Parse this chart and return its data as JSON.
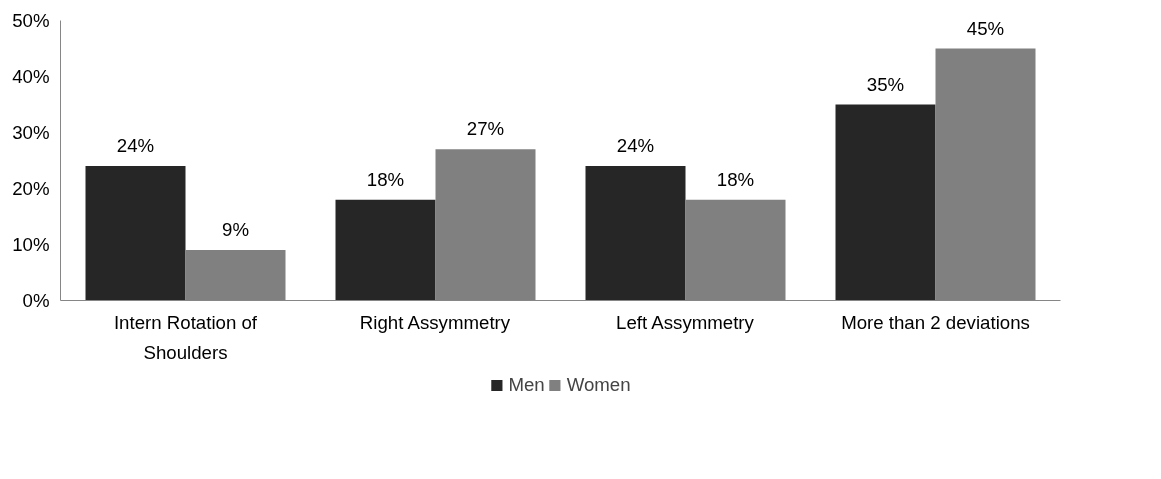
{
  "chart_data": {
    "type": "bar",
    "categories": [
      "Intern Rotation of Shoulders",
      "Right Assymmetry",
      "Left Assymmetry",
      "More than 2 deviations"
    ],
    "series": [
      {
        "name": "Men",
        "color": "#262626",
        "values": [
          24,
          18,
          24,
          35
        ],
        "value_labels": [
          "24%",
          "18%",
          "24%",
          "35%"
        ]
      },
      {
        "name": "Women",
        "color": "#808080",
        "values": [
          9,
          27,
          18,
          45
        ],
        "value_labels": [
          "9%",
          "27%",
          "18%",
          "45%"
        ]
      }
    ],
    "ylim": [
      0,
      50
    ],
    "yticks": [
      {
        "value": 0,
        "label": "0%"
      },
      {
        "value": 10,
        "label": "10%"
      },
      {
        "value": 20,
        "label": "20%"
      },
      {
        "value": 30,
        "label": "30%"
      },
      {
        "value": 40,
        "label": "40%"
      },
      {
        "value": 50,
        "label": "50%"
      }
    ],
    "grid": false,
    "legend": "bottom"
  }
}
